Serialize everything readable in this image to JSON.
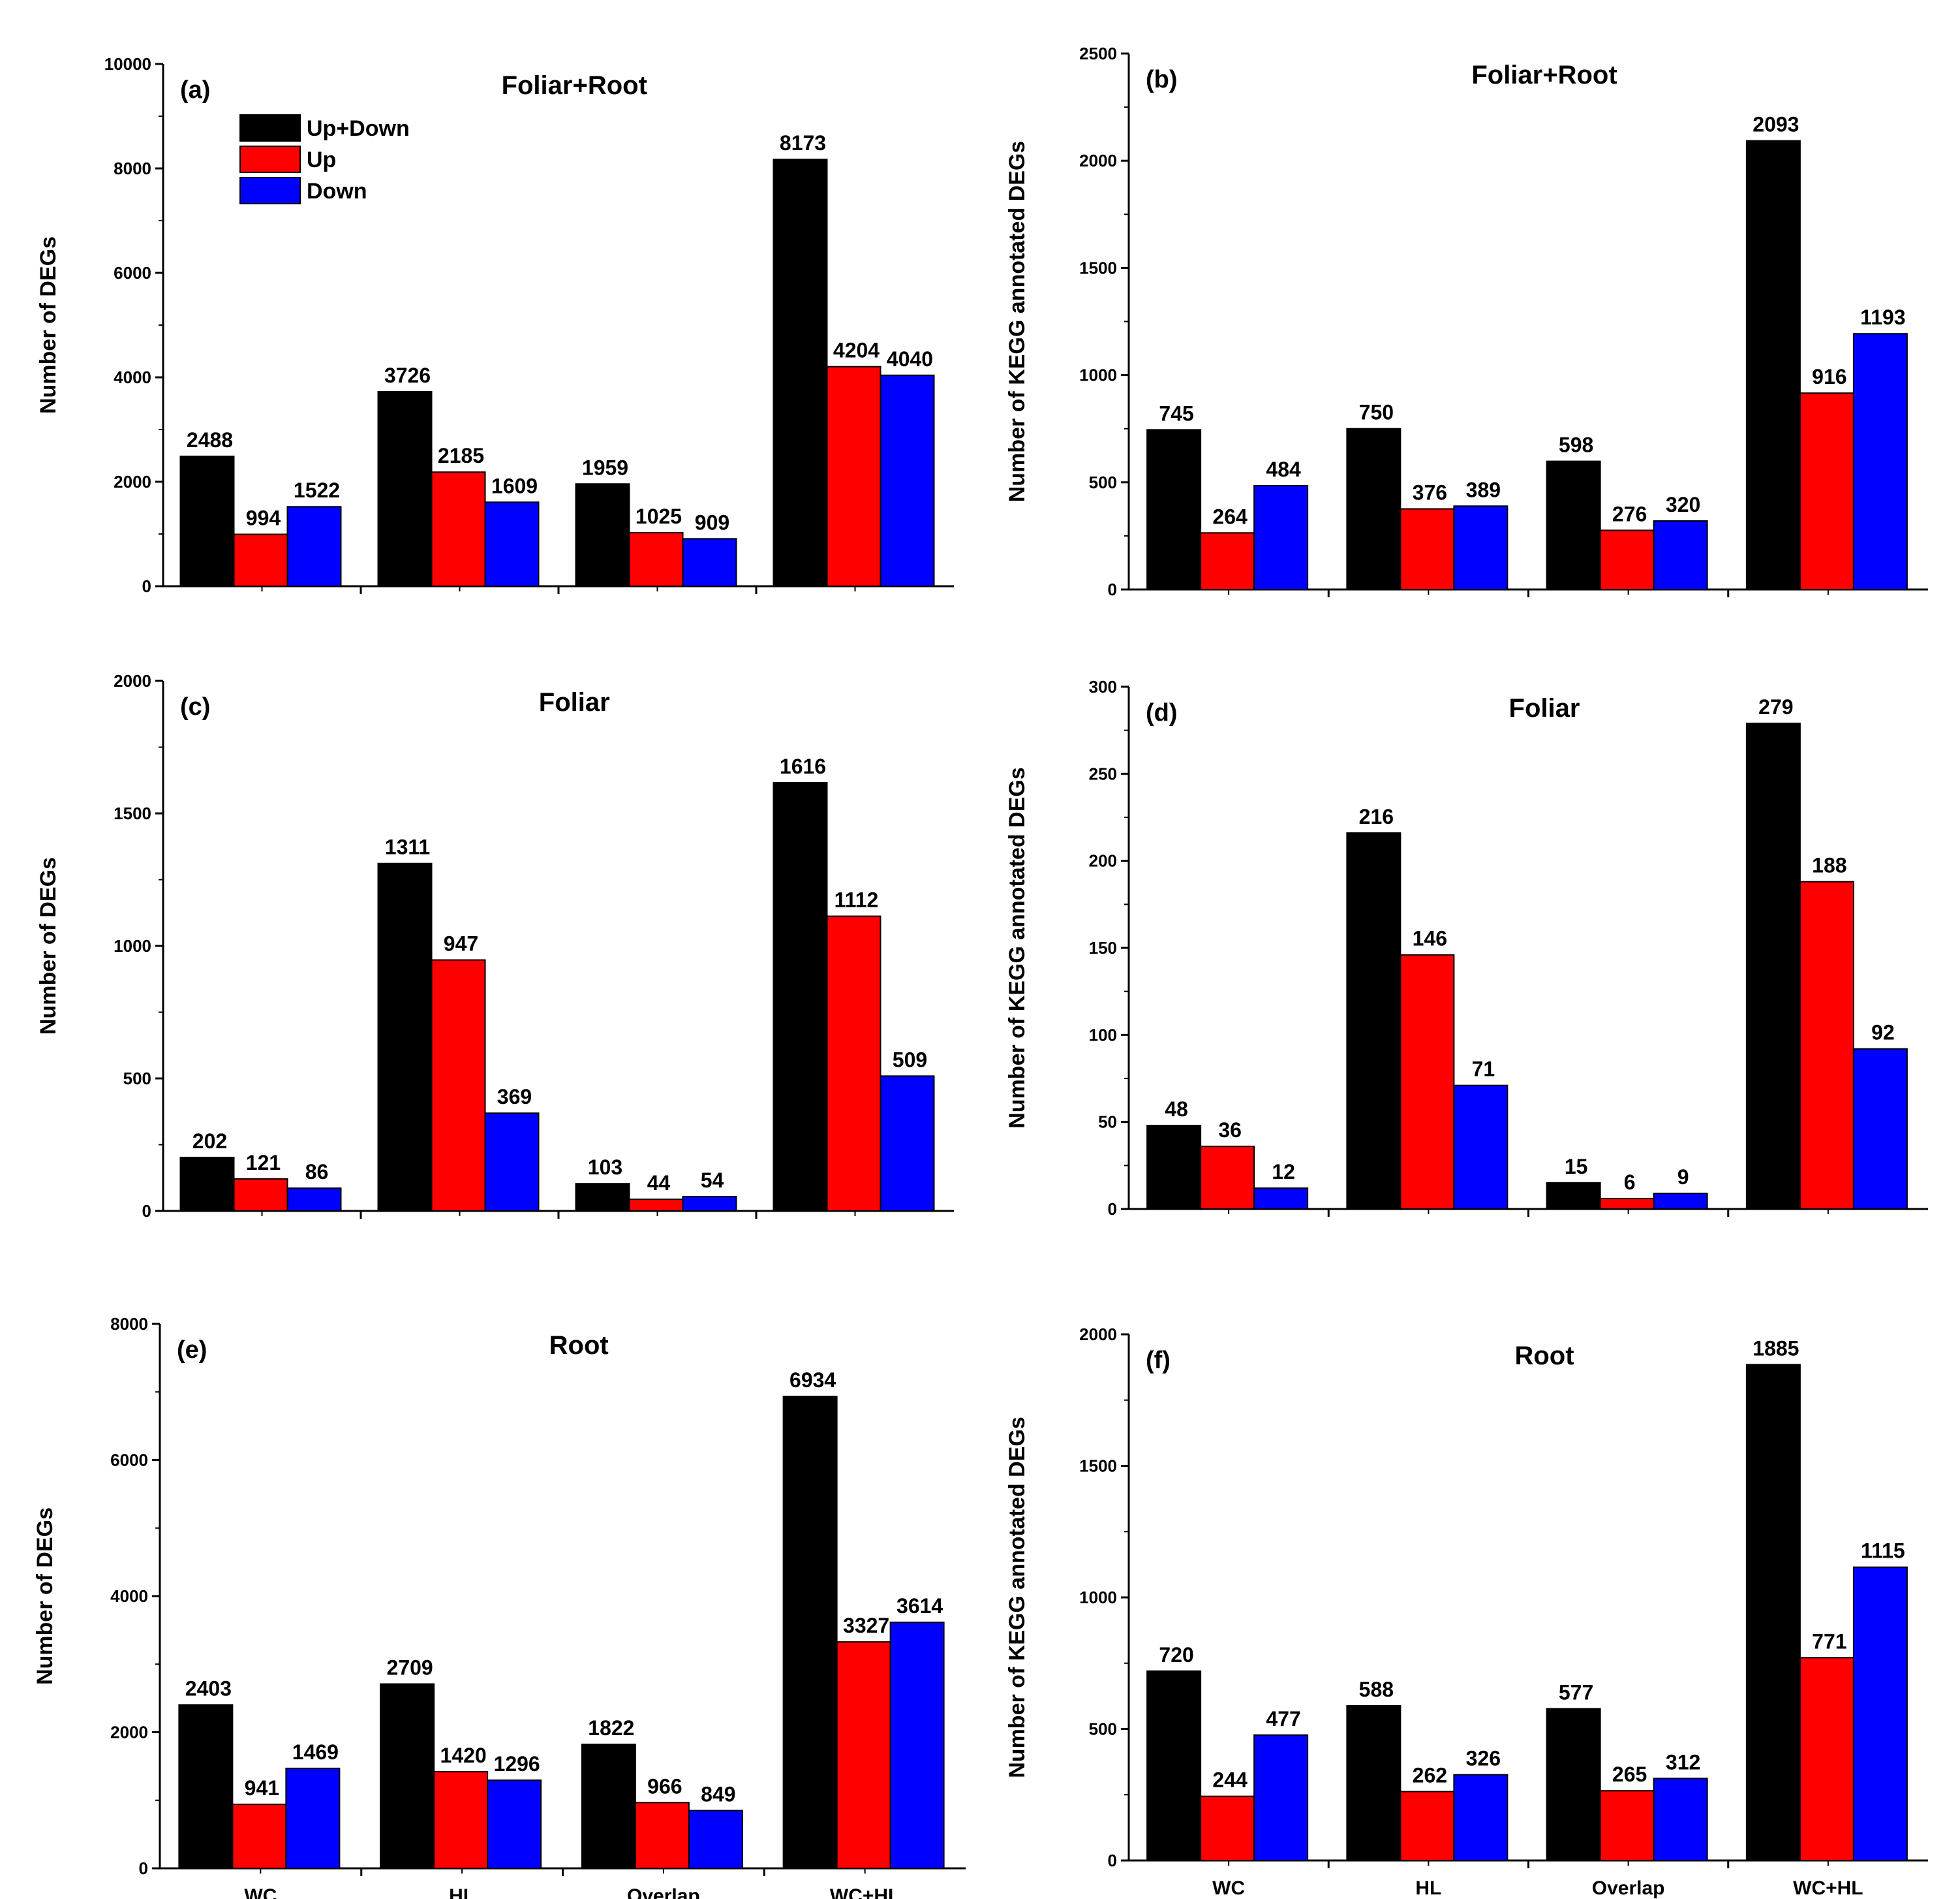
{
  "figure": {
    "legend": [
      {
        "name": "Up+Down",
        "color": "#000000"
      },
      {
        "name": "Up",
        "color": "#ff0000"
      },
      {
        "name": "Down",
        "color": "#0000ff"
      }
    ]
  },
  "chart_data": [
    {
      "id": "a",
      "panel_label": "(a)",
      "type": "bar",
      "title": "Foliar+Root",
      "ylabel": "Number of DEGs",
      "ylim": [
        0,
        10000
      ],
      "yticks": [
        0,
        2000,
        4000,
        6000,
        8000,
        10000
      ],
      "categories": [
        "WC",
        "HL",
        "Overlap",
        "WC+HL"
      ],
      "show_categories": false,
      "series": [
        {
          "name": "Up+Down",
          "color": "#000000",
          "values": [
            2488,
            3726,
            1959,
            8173
          ],
          "labels": [
            "2488",
            "3726",
            "1959",
            "8173"
          ]
        },
        {
          "name": "Up",
          "color": "#ff0000",
          "values": [
            994,
            2185,
            1025,
            4204
          ],
          "labels": [
            "994",
            "2185",
            "1025",
            "4204"
          ]
        },
        {
          "name": "Down",
          "color": "#0000ff",
          "values": [
            1522,
            1609,
            909,
            4040
          ],
          "labels": [
            "1522",
            "1609",
            "909",
            "4040"
          ]
        }
      ]
    },
    {
      "id": "b",
      "panel_label": "(b)",
      "type": "bar",
      "title": "Foliar+Root",
      "ylabel": "Number of KEGG annotated DEGs",
      "ylim": [
        0,
        2500
      ],
      "yticks": [
        0,
        500,
        1000,
        1500,
        2000,
        2500
      ],
      "categories": [
        "WC",
        "HL",
        "Overlap",
        "WC+HL"
      ],
      "show_categories": false,
      "series": [
        {
          "name": "Up+Down",
          "color": "#000000",
          "values": [
            745,
            750,
            598,
            2093
          ],
          "labels": [
            "745",
            "750",
            "598",
            "2093"
          ]
        },
        {
          "name": "Up",
          "color": "#ff0000",
          "values": [
            264,
            376,
            276,
            916
          ],
          "labels": [
            "264",
            "376",
            "276",
            "916"
          ]
        },
        {
          "name": "Down",
          "color": "#0000ff",
          "values": [
            484,
            389,
            320,
            1193
          ],
          "labels": [
            "484",
            "389",
            "320",
            "1193"
          ]
        }
      ]
    },
    {
      "id": "c",
      "panel_label": "(c)",
      "type": "bar",
      "title": "Foliar",
      "ylabel": "Number of DEGs",
      "ylim": [
        0,
        2000
      ],
      "yticks": [
        0,
        500,
        1000,
        1500,
        2000
      ],
      "categories": [
        "WC",
        "HL",
        "Overlap",
        "WC+HL"
      ],
      "show_categories": false,
      "series": [
        {
          "name": "Up+Down",
          "color": "#000000",
          "values": [
            202,
            1311,
            103,
            1616
          ],
          "labels": [
            "202",
            "1311",
            "103",
            "1616"
          ]
        },
        {
          "name": "Up",
          "color": "#ff0000",
          "values": [
            121,
            947,
            44,
            1112
          ],
          "labels": [
            "121",
            "947",
            "44",
            "1112"
          ]
        },
        {
          "name": "Down",
          "color": "#0000ff",
          "values": [
            86,
            369,
            54,
            509
          ],
          "labels": [
            "86",
            "369",
            "54",
            "509"
          ]
        }
      ]
    },
    {
      "id": "d",
      "panel_label": "(d)",
      "type": "bar",
      "title": "Foliar",
      "ylabel": "Number of KEGG annotated DEGs",
      "ylim": [
        0,
        300
      ],
      "yticks": [
        0,
        50,
        100,
        150,
        200,
        250,
        300
      ],
      "categories": [
        "WC",
        "HL",
        "Overlap",
        "WC+HL"
      ],
      "show_categories": false,
      "series": [
        {
          "name": "Up+Down",
          "color": "#000000",
          "values": [
            48,
            216,
            15,
            279
          ],
          "labels": [
            "48",
            "216",
            "15",
            "279"
          ]
        },
        {
          "name": "Up",
          "color": "#ff0000",
          "values": [
            36,
            146,
            6,
            188
          ],
          "labels": [
            "36",
            "146",
            "6",
            "188"
          ]
        },
        {
          "name": "Down",
          "color": "#0000ff",
          "values": [
            12,
            71,
            9,
            92
          ],
          "labels": [
            "12",
            "71",
            "9",
            "92"
          ]
        }
      ]
    },
    {
      "id": "e",
      "panel_label": "(e)",
      "type": "bar",
      "title": "Root",
      "ylabel": "Number of DEGs",
      "ylim": [
        0,
        8000
      ],
      "yticks": [
        0,
        2000,
        4000,
        6000,
        8000
      ],
      "categories": [
        "WC",
        "HL",
        "Overlap",
        "WC+HL"
      ],
      "show_categories": true,
      "series": [
        {
          "name": "Up+Down",
          "color": "#000000",
          "values": [
            2403,
            2709,
            1822,
            6934
          ],
          "labels": [
            "2403",
            "2709",
            "1822",
            "6934"
          ]
        },
        {
          "name": "Up",
          "color": "#ff0000",
          "values": [
            941,
            1420,
            966,
            3327
          ],
          "labels": [
            "941",
            "1420",
            "966",
            "3327"
          ]
        },
        {
          "name": "Down",
          "color": "#0000ff",
          "values": [
            1469,
            1296,
            849,
            3614
          ],
          "labels": [
            "1469",
            "1296",
            "849",
            "3614"
          ]
        }
      ]
    },
    {
      "id": "f",
      "panel_label": "(f)",
      "type": "bar",
      "title": "Root",
      "ylabel": "Number of KEGG annotated DEGs",
      "ylim": [
        0,
        2000
      ],
      "yticks": [
        0,
        500,
        1000,
        1500,
        2000
      ],
      "categories": [
        "WC",
        "HL",
        "Overlap",
        "WC+HL"
      ],
      "show_categories": true,
      "series": [
        {
          "name": "Up+Down",
          "color": "#000000",
          "values": [
            720,
            588,
            577,
            1885
          ],
          "labels": [
            "720",
            "588",
            "577",
            "1885"
          ]
        },
        {
          "name": "Up",
          "color": "#ff0000",
          "values": [
            244,
            262,
            265,
            771
          ],
          "labels": [
            "244",
            "262",
            "265",
            "771"
          ]
        },
        {
          "name": "Down",
          "color": "#0000ff",
          "values": [
            477,
            326,
            312,
            1115
          ],
          "labels": [
            "477",
            "326",
            "312",
            "1115"
          ]
        }
      ]
    }
  ]
}
